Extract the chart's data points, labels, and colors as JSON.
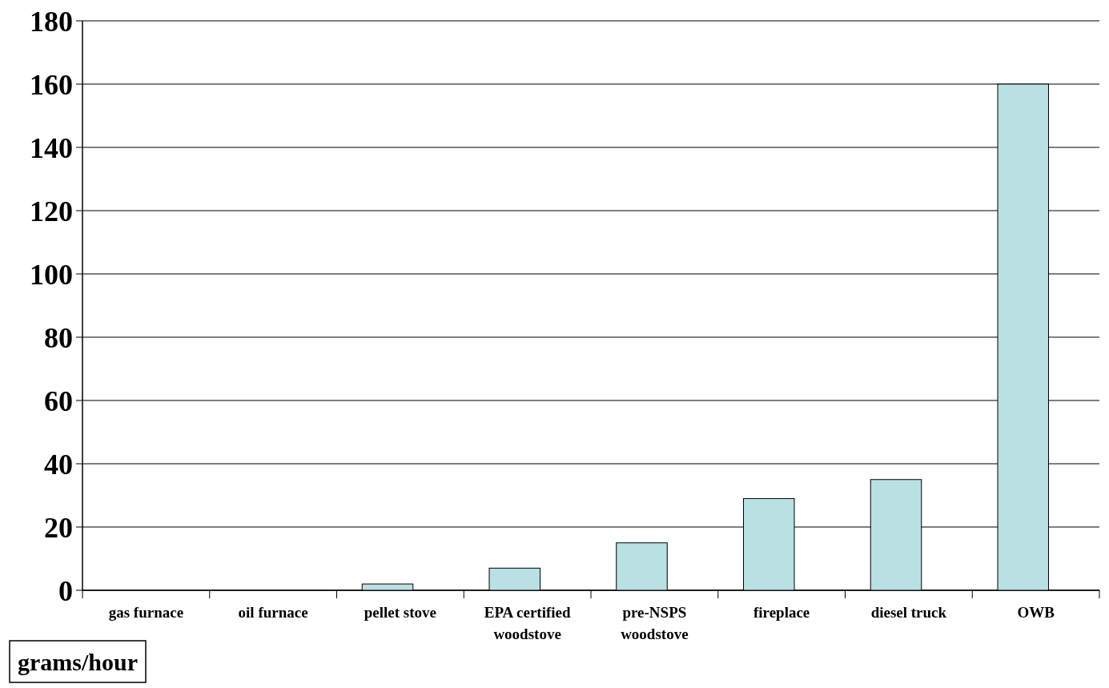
{
  "chart_data": {
    "type": "bar",
    "ylabel": "grams/hour",
    "categories": [
      "gas furnace",
      "oil furnace",
      "pellet stove",
      "EPA certified woodstove",
      "pre-NSPS woodstove",
      "fireplace",
      "diesel truck",
      "OWB"
    ],
    "values": [
      0,
      0,
      2,
      7,
      15,
      29,
      35,
      160
    ],
    "color": "#b9e0e2",
    "ylim": [
      0,
      180
    ],
    "yticks": [
      0,
      20,
      40,
      60,
      80,
      100,
      120,
      140,
      160,
      180
    ],
    "grid": "y"
  }
}
